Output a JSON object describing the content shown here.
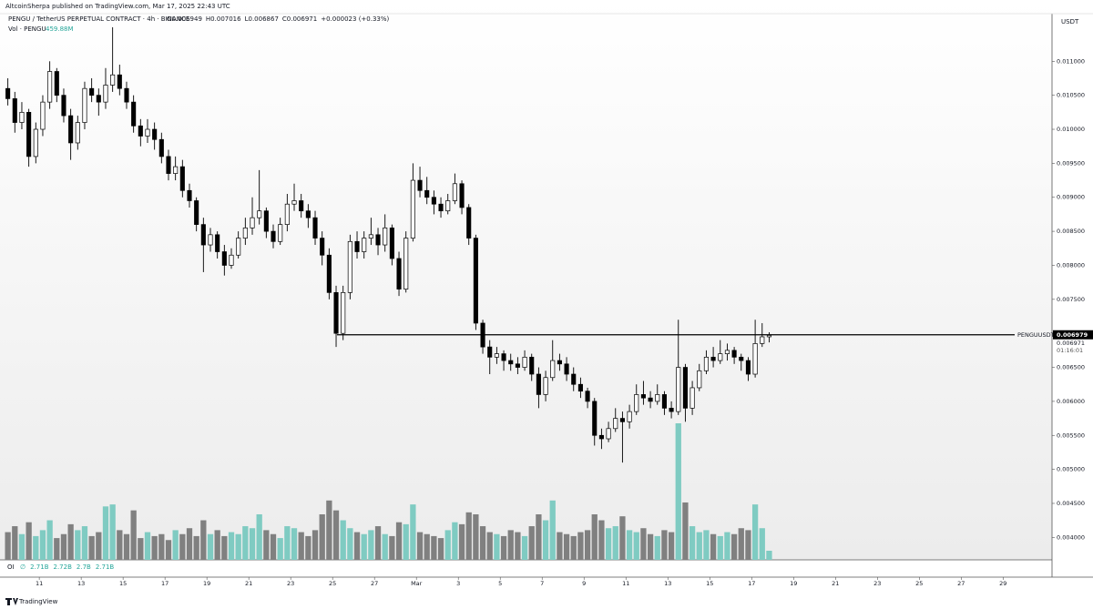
{
  "chart_data": {
    "type": "candlestick",
    "published": "AltcoinSherpa published on TradingView.com, Mar 17, 2025 22:43 UTC",
    "title": "PENGU / TetherUS PERPETUAL CONTRACT · 4h · BINANCE",
    "legend_values": [
      "O0.006949",
      "H0.007016",
      "L0.006867",
      "C0.006971",
      "+0.000023 (+0.33%)"
    ],
    "volume_title": "Vol · PENGU",
    "volume_last_label": "459.88M",
    "currency": "USDT",
    "watermark": "TradingView",
    "oi": {
      "label": "OI",
      "items": [
        "∅",
        "2.71B",
        "2.72B",
        "2.7B",
        "2.71B"
      ]
    },
    "up_color": "#ffffff",
    "down_color": "#000000",
    "wick_color": "#000000",
    "volume_up_color": "#7fcbc2",
    "volume_down_color": "#808080",
    "hline": {
      "value": 0.006979,
      "label": "PENGUUSDT.P",
      "value_label": "0.006979",
      "x_start": 341
    },
    "last_price_label": "0.006971",
    "countdown": "01:16:01",
    "xlim": [
      -45,
      1160
    ],
    "ylim": [
      0.00367,
      0.0117
    ],
    "xticks": [
      {
        "value": 0,
        "label": "11"
      },
      {
        "value": 48,
        "label": "13"
      },
      {
        "value": 96,
        "label": "15"
      },
      {
        "value": 144,
        "label": "17"
      },
      {
        "value": 192,
        "label": "19"
      },
      {
        "value": 240,
        "label": "21"
      },
      {
        "value": 288,
        "label": "23"
      },
      {
        "value": 336,
        "label": "25"
      },
      {
        "value": 384,
        "label": "27"
      },
      {
        "value": 432,
        "label": "Mar"
      },
      {
        "value": 480,
        "label": "3"
      },
      {
        "value": 528,
        "label": "5"
      },
      {
        "value": 576,
        "label": "7"
      },
      {
        "value": 624,
        "label": "9"
      },
      {
        "value": 672,
        "label": "11"
      },
      {
        "value": 720,
        "label": "13"
      },
      {
        "value": 768,
        "label": "15"
      },
      {
        "value": 816,
        "label": "17"
      },
      {
        "value": 864,
        "label": "19"
      },
      {
        "value": 912,
        "label": "21"
      },
      {
        "value": 960,
        "label": "23"
      },
      {
        "value": 1008,
        "label": "25"
      },
      {
        "value": 1056,
        "label": "27"
      },
      {
        "value": 1104,
        "label": "29"
      }
    ],
    "yticks": [
      {
        "value": 0.004,
        "label": "0.004000"
      },
      {
        "value": 0.0045,
        "label": "0.004500"
      },
      {
        "value": 0.005,
        "label": "0.005000"
      },
      {
        "value": 0.0055,
        "label": "0.005500"
      },
      {
        "value": 0.006,
        "label": "0.006000"
      },
      {
        "value": 0.0065,
        "label": "0.006500"
      },
      {
        "value": 0.007,
        "label": "0.007000"
      },
      {
        "value": 0.0075,
        "label": "0.007500"
      },
      {
        "value": 0.008,
        "label": "0.008000"
      },
      {
        "value": 0.0085,
        "label": "0.008500"
      },
      {
        "value": 0.009,
        "label": "0.009000"
      },
      {
        "value": 0.0095,
        "label": "0.009500"
      },
      {
        "value": 0.01,
        "label": "0.010000"
      },
      {
        "value": 0.0105,
        "label": "0.010500"
      },
      {
        "value": 0.011,
        "label": "0.011000"
      }
    ],
    "x": [
      -36,
      -28,
      -20,
      -12,
      -4,
      4,
      12,
      20,
      28,
      36,
      44,
      52,
      60,
      68,
      76,
      84,
      92,
      100,
      108,
      116,
      124,
      132,
      140,
      148,
      156,
      164,
      172,
      180,
      188,
      196,
      204,
      212,
      220,
      228,
      236,
      244,
      252,
      260,
      268,
      276,
      284,
      292,
      300,
      308,
      316,
      324,
      332,
      340,
      348,
      356,
      364,
      372,
      380,
      388,
      396,
      404,
      412,
      420,
      428,
      436,
      444,
      452,
      460,
      468,
      476,
      484,
      492,
      500,
      508,
      516,
      524,
      532,
      540,
      548,
      556,
      564,
      572,
      580,
      588,
      596,
      604,
      612,
      620,
      628,
      636,
      644,
      652,
      660,
      668,
      676,
      684,
      692,
      700,
      708,
      716,
      724,
      732,
      740,
      748,
      756,
      764,
      772,
      780,
      788,
      796,
      804,
      812,
      820,
      828,
      836
    ],
    "ohlc": [
      [
        0.0106,
        0.01075,
        0.01035,
        0.01045
      ],
      [
        0.01045,
        0.01055,
        0.00995,
        0.0101
      ],
      [
        0.0101,
        0.0104,
        0.01,
        0.01025
      ],
      [
        0.01025,
        0.0103,
        0.00945,
        0.0096
      ],
      [
        0.0096,
        0.0101,
        0.0095,
        0.01
      ],
      [
        0.01,
        0.0105,
        0.0099,
        0.0104
      ],
      [
        0.0104,
        0.011,
        0.0103,
        0.01085
      ],
      [
        0.01085,
        0.0109,
        0.0104,
        0.0105
      ],
      [
        0.0105,
        0.0106,
        0.0101,
        0.0102
      ],
      [
        0.0102,
        0.0103,
        0.00955,
        0.0098
      ],
      [
        0.0098,
        0.0102,
        0.0097,
        0.0101
      ],
      [
        0.0101,
        0.0107,
        0.01,
        0.0106
      ],
      [
        0.0106,
        0.01075,
        0.0104,
        0.0105
      ],
      [
        0.0105,
        0.0106,
        0.0102,
        0.0104
      ],
      [
        0.0104,
        0.0109,
        0.0103,
        0.01065
      ],
      [
        0.01065,
        0.0115,
        0.01055,
        0.0108
      ],
      [
        0.0108,
        0.01095,
        0.0105,
        0.0106
      ],
      [
        0.0106,
        0.0107,
        0.0103,
        0.0104
      ],
      [
        0.0104,
        0.0105,
        0.00995,
        0.01005
      ],
      [
        0.01005,
        0.01015,
        0.00975,
        0.0099
      ],
      [
        0.0099,
        0.01015,
        0.0098,
        0.01
      ],
      [
        0.01,
        0.0101,
        0.0097,
        0.00985
      ],
      [
        0.00985,
        0.00995,
        0.0095,
        0.0096
      ],
      [
        0.0096,
        0.0097,
        0.00925,
        0.00935
      ],
      [
        0.00935,
        0.0096,
        0.00925,
        0.00945
      ],
      [
        0.00945,
        0.00955,
        0.009,
        0.0091
      ],
      [
        0.0091,
        0.0092,
        0.00885,
        0.00895
      ],
      [
        0.00895,
        0.009,
        0.0085,
        0.0086
      ],
      [
        0.0086,
        0.0087,
        0.0079,
        0.0083
      ],
      [
        0.0083,
        0.00855,
        0.0082,
        0.00845
      ],
      [
        0.00845,
        0.0085,
        0.0081,
        0.0082
      ],
      [
        0.0082,
        0.0083,
        0.00785,
        0.008
      ],
      [
        0.008,
        0.00825,
        0.00795,
        0.00815
      ],
      [
        0.00815,
        0.0085,
        0.0081,
        0.0084
      ],
      [
        0.0084,
        0.0087,
        0.0083,
        0.00855
      ],
      [
        0.00855,
        0.009,
        0.00845,
        0.0087
      ],
      [
        0.0087,
        0.0094,
        0.0086,
        0.0088
      ],
      [
        0.0088,
        0.00885,
        0.0084,
        0.0085
      ],
      [
        0.0085,
        0.0086,
        0.00825,
        0.00835
      ],
      [
        0.00835,
        0.0087,
        0.0083,
        0.0086
      ],
      [
        0.0086,
        0.00905,
        0.0085,
        0.0089
      ],
      [
        0.0089,
        0.0092,
        0.0088,
        0.00895
      ],
      [
        0.00895,
        0.00905,
        0.0087,
        0.0088
      ],
      [
        0.0088,
        0.0089,
        0.00855,
        0.0087
      ],
      [
        0.0087,
        0.0088,
        0.0083,
        0.0084
      ],
      [
        0.0084,
        0.0085,
        0.008,
        0.00815
      ],
      [
        0.00815,
        0.00825,
        0.0075,
        0.0076
      ],
      [
        0.0076,
        0.0077,
        0.0068,
        0.007
      ],
      [
        0.007,
        0.0077,
        0.0069,
        0.0076
      ],
      [
        0.0076,
        0.00845,
        0.0075,
        0.00835
      ],
      [
        0.00835,
        0.0085,
        0.0081,
        0.0082
      ],
      [
        0.0082,
        0.0085,
        0.0081,
        0.0084
      ],
      [
        0.0084,
        0.0087,
        0.0083,
        0.00845
      ],
      [
        0.00845,
        0.00855,
        0.00815,
        0.0083
      ],
      [
        0.0083,
        0.00875,
        0.0082,
        0.00855
      ],
      [
        0.00855,
        0.0086,
        0.008,
        0.0081
      ],
      [
        0.0081,
        0.0082,
        0.00755,
        0.00765
      ],
      [
        0.00765,
        0.0085,
        0.0076,
        0.0084
      ],
      [
        0.0084,
        0.0095,
        0.00835,
        0.00925
      ],
      [
        0.00925,
        0.00945,
        0.009,
        0.0091
      ],
      [
        0.0091,
        0.0093,
        0.0089,
        0.009
      ],
      [
        0.009,
        0.0091,
        0.00875,
        0.0089
      ],
      [
        0.0089,
        0.009,
        0.0087,
        0.0088
      ],
      [
        0.0088,
        0.00905,
        0.00875,
        0.00895
      ],
      [
        0.00895,
        0.00935,
        0.0089,
        0.0092
      ],
      [
        0.0092,
        0.00925,
        0.00875,
        0.00885
      ],
      [
        0.00885,
        0.0089,
        0.0083,
        0.0084
      ],
      [
        0.0084,
        0.00845,
        0.00705,
        0.00715
      ],
      [
        0.00715,
        0.0072,
        0.0067,
        0.0068
      ],
      [
        0.0068,
        0.0069,
        0.0064,
        0.00665
      ],
      [
        0.00665,
        0.0068,
        0.00655,
        0.0067
      ],
      [
        0.0067,
        0.00675,
        0.00645,
        0.0066
      ],
      [
        0.0066,
        0.0067,
        0.00645,
        0.00655
      ],
      [
        0.00655,
        0.00665,
        0.0064,
        0.0065
      ],
      [
        0.0065,
        0.00675,
        0.00645,
        0.00665
      ],
      [
        0.00665,
        0.0067,
        0.0063,
        0.0064
      ],
      [
        0.0064,
        0.0065,
        0.0059,
        0.0061
      ],
      [
        0.0061,
        0.00645,
        0.006,
        0.00635
      ],
      [
        0.00635,
        0.0069,
        0.0063,
        0.0066
      ],
      [
        0.0066,
        0.0067,
        0.00645,
        0.00655
      ],
      [
        0.00655,
        0.00665,
        0.0063,
        0.0064
      ],
      [
        0.0064,
        0.0065,
        0.00615,
        0.00625
      ],
      [
        0.00625,
        0.00635,
        0.00605,
        0.00615
      ],
      [
        0.00615,
        0.0062,
        0.0059,
        0.006
      ],
      [
        0.006,
        0.00605,
        0.00535,
        0.0055
      ],
      [
        0.0055,
        0.0056,
        0.0053,
        0.00545
      ],
      [
        0.00545,
        0.0057,
        0.0054,
        0.0056
      ],
      [
        0.0056,
        0.0059,
        0.00555,
        0.00575
      ],
      [
        0.00575,
        0.00585,
        0.0051,
        0.0057
      ],
      [
        0.0057,
        0.00595,
        0.0056,
        0.00585
      ],
      [
        0.00585,
        0.00625,
        0.0058,
        0.0061
      ],
      [
        0.0061,
        0.0063,
        0.00595,
        0.00605
      ],
      [
        0.00605,
        0.00615,
        0.0059,
        0.006
      ],
      [
        0.006,
        0.00625,
        0.00595,
        0.0061
      ],
      [
        0.0061,
        0.00615,
        0.0058,
        0.0059
      ],
      [
        0.0059,
        0.006,
        0.00575,
        0.00585
      ],
      [
        0.00585,
        0.0072,
        0.0058,
        0.0065
      ],
      [
        0.0065,
        0.00655,
        0.0057,
        0.0059
      ],
      [
        0.0059,
        0.0063,
        0.0058,
        0.0062
      ],
      [
        0.0062,
        0.00655,
        0.00615,
        0.00645
      ],
      [
        0.00645,
        0.00675,
        0.0064,
        0.00665
      ],
      [
        0.00665,
        0.0068,
        0.0065,
        0.0066
      ],
      [
        0.0066,
        0.0069,
        0.00655,
        0.0067
      ],
      [
        0.0067,
        0.00685,
        0.0066,
        0.00675
      ],
      [
        0.00675,
        0.0068,
        0.00655,
        0.00665
      ],
      [
        0.00665,
        0.0067,
        0.00645,
        0.0066
      ],
      [
        0.0066,
        0.00665,
        0.0063,
        0.0064
      ],
      [
        0.0064,
        0.0072,
        0.00635,
        0.00685
      ],
      [
        0.00685,
        0.00715,
        0.0068,
        0.006949
      ],
      [
        0.006949,
        0.007016,
        0.006867,
        0.006971
      ]
    ],
    "volume": [
      1400,
      1700,
      1300,
      1900,
      1200,
      1500,
      2000,
      1100,
      1300,
      1800,
      1500,
      1700,
      1200,
      1400,
      2700,
      2800,
      1500,
      1300,
      2500,
      1100,
      1400,
      1200,
      1300,
      1000,
      1500,
      1300,
      1600,
      1200,
      2000,
      1300,
      1500,
      1200,
      1400,
      1300,
      1700,
      1600,
      2300,
      1500,
      1300,
      1100,
      1700,
      1600,
      1400,
      1200,
      1500,
      2300,
      3000,
      2500,
      2000,
      1600,
      1400,
      1300,
      1500,
      1700,
      1300,
      1200,
      1900,
      1800,
      2800,
      1400,
      1300,
      1200,
      1100,
      1500,
      1900,
      1800,
      2400,
      2300,
      1700,
      1400,
      1300,
      1200,
      1500,
      1400,
      1200,
      1700,
      2300,
      2000,
      3000,
      1400,
      1300,
      1200,
      1400,
      1500,
      2300,
      2000,
      1600,
      1700,
      2200,
      1500,
      1400,
      1600,
      1300,
      1200,
      1500,
      1400,
      6900,
      2900,
      1700,
      1400,
      1500,
      1300,
      1200,
      1400,
      1300,
      1600,
      1500,
      2800,
      1600,
      459.88
    ]
  }
}
